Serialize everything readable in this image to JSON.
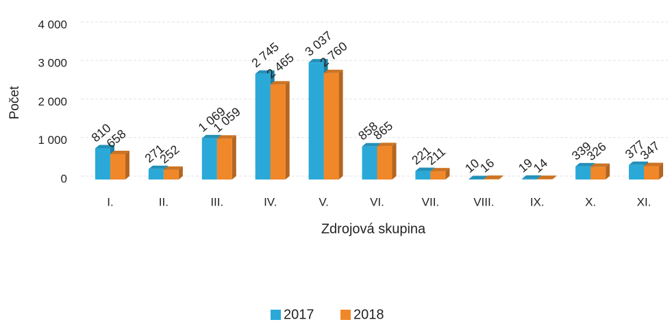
{
  "chart_data": {
    "type": "bar3d",
    "x_label": "Zdrojová skupina",
    "y_label": "Počet",
    "categories": [
      "I.",
      "II.",
      "III.",
      "IV.",
      "V.",
      "VI.",
      "VII.",
      "VIII.",
      "IX.",
      "X.",
      "XI."
    ],
    "series": [
      {
        "name": "2017",
        "color": "#2aa9d8",
        "values": [
          810,
          271,
          1069,
          2745,
          3037,
          858,
          221,
          10,
          19,
          339,
          377
        ],
        "value_labels": [
          "810",
          "271",
          "1 069",
          "2 745",
          "3 037",
          "858",
          "221",
          "10",
          "19",
          "339",
          "377"
        ]
      },
      {
        "name": "2018",
        "color": "#f0882a",
        "values": [
          658,
          252,
          1059,
          2465,
          2760,
          865,
          211,
          16,
          14,
          326,
          347
        ],
        "value_labels": [
          "658",
          "252",
          "1 059",
          "2 465",
          "2 760",
          "865",
          "211",
          "16",
          "14",
          "326",
          "347"
        ]
      }
    ],
    "ylim": [
      0,
      4000
    ],
    "yticks": [
      0,
      {
        "value": 1000,
        "label": "1 000"
      },
      {
        "value": 2000,
        "label": "2 000"
      },
      {
        "value": 3000,
        "label": "3 000"
      },
      {
        "value": 4000,
        "label": "4 000"
      }
    ],
    "grid": true,
    "legend": "bottom"
  }
}
